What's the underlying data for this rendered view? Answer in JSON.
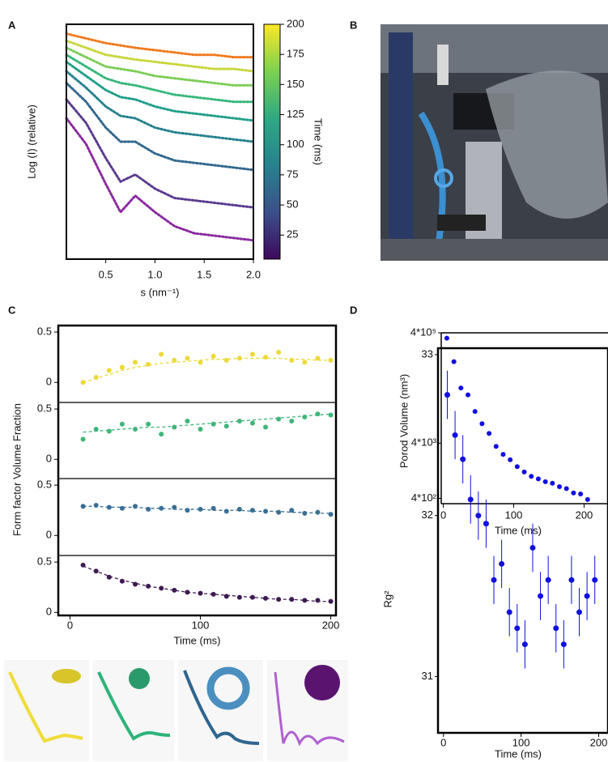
{
  "chart_data": [
    {
      "type": "line",
      "panel": "A",
      "xlabel": "s (nm⁻¹)",
      "ylabel": "Log (I) (relative)",
      "x": [
        0.1,
        0.3,
        0.5,
        0.65,
        0.8,
        1.0,
        1.2,
        1.4,
        1.6,
        1.8,
        2.0
      ],
      "xlim": [
        0.1,
        2.0
      ],
      "xticks": [
        0.5,
        {
          "value": 1.0,
          "label": "1.0"
        },
        1.5,
        {
          "value": 2.0,
          "label": "2.0"
        }
      ],
      "ylim": [
        0,
        100
      ],
      "series": [
        {
          "color": "#f07a1e",
          "values": [
            96,
            94,
            92,
            91,
            90,
            89,
            88,
            87,
            87,
            86,
            86
          ]
        },
        {
          "color": "#c8d63a",
          "values": [
            93,
            90,
            87,
            86,
            85,
            84,
            83,
            82,
            81,
            81,
            80
          ]
        },
        {
          "color": "#7ccd55",
          "values": [
            90,
            86,
            82,
            81,
            80,
            78,
            77,
            76,
            75,
            74,
            74
          ]
        },
        {
          "color": "#35b779",
          "values": [
            87,
            82,
            77,
            75,
            74,
            72,
            70,
            69,
            68,
            67,
            67
          ]
        },
        {
          "color": "#1f9e89",
          "values": [
            84,
            78,
            72,
            69,
            68,
            65,
            63,
            62,
            61,
            60,
            59
          ]
        },
        {
          "color": "#26828e",
          "values": [
            80,
            73,
            65,
            61,
            60,
            56,
            54,
            53,
            52,
            51,
            50
          ]
        },
        {
          "color": "#31688e",
          "values": [
            75,
            67,
            56,
            50,
            50,
            45,
            42,
            41,
            40,
            39,
            38
          ]
        },
        {
          "color": "#5a3a8e",
          "values": [
            68,
            58,
            43,
            33,
            36,
            30,
            26,
            25,
            24,
            23,
            22
          ]
        },
        {
          "color": "#8a2aa0",
          "values": [
            60,
            49,
            32,
            20,
            27,
            20,
            14,
            11,
            10,
            9,
            8
          ]
        }
      ],
      "colorbar": {
        "label": "Time (ms)",
        "lim": [
          5,
          200
        ],
        "ticks": [
          25,
          50,
          75,
          100,
          125,
          150,
          175,
          200
        ],
        "colors": [
          "#3d0a5c",
          "#3b4f8a",
          "#26828e",
          "#2fa983",
          "#7cd250",
          "#fde725"
        ]
      }
    },
    {
      "type": "image",
      "panel": "B"
    },
    {
      "type": "scatter",
      "panel": "C",
      "xlabel": "Time (ms)",
      "ylabel": "Form factor Volume Fraction",
      "x": [
        10,
        20,
        30,
        40,
        50,
        60,
        70,
        80,
        90,
        100,
        110,
        120,
        130,
        140,
        150,
        160,
        170,
        180,
        190,
        200
      ],
      "xlim": [
        -9,
        204
      ],
      "xticks": [
        0,
        100,
        200
      ],
      "ylim": [
        -0.03,
        0.565
      ],
      "yticks": [
        0,
        0.5
      ],
      "subplots": [
        {
          "color": "#ecd93a",
          "values": [
            0.0,
            0.05,
            0.12,
            0.15,
            0.2,
            0.18,
            0.28,
            0.22,
            0.24,
            0.2,
            0.26,
            0.22,
            0.24,
            0.28,
            0.25,
            0.3,
            0.22,
            0.2,
            0.24,
            0.22
          ],
          "fit": [
            0.0,
            0.04,
            0.08,
            0.12,
            0.15,
            0.17,
            0.19,
            0.2,
            0.21,
            0.22,
            0.23,
            0.23,
            0.24,
            0.24,
            0.24,
            0.24,
            0.23,
            0.23,
            0.22,
            0.22
          ]
        },
        {
          "color": "#3fb67a",
          "values": [
            0.2,
            0.3,
            0.28,
            0.35,
            0.3,
            0.35,
            0.25,
            0.32,
            0.38,
            0.3,
            0.35,
            0.33,
            0.38,
            0.36,
            0.32,
            0.4,
            0.38,
            0.42,
            0.45,
            0.44
          ],
          "fit": [
            0.27,
            0.28,
            0.29,
            0.3,
            0.31,
            0.32,
            0.32,
            0.33,
            0.34,
            0.35,
            0.36,
            0.37,
            0.38,
            0.39,
            0.4,
            0.41,
            0.42,
            0.43,
            0.44,
            0.45
          ]
        },
        {
          "color": "#3a6f94",
          "values": [
            0.29,
            0.3,
            0.28,
            0.27,
            0.29,
            0.26,
            0.27,
            0.28,
            0.25,
            0.26,
            0.27,
            0.24,
            0.26,
            0.25,
            0.24,
            0.23,
            0.25,
            0.22,
            0.23,
            0.21
          ],
          "fit": [
            0.29,
            0.29,
            0.28,
            0.28,
            0.28,
            0.27,
            0.27,
            0.26,
            0.26,
            0.26,
            0.25,
            0.25,
            0.25,
            0.24,
            0.24,
            0.24,
            0.23,
            0.23,
            0.22,
            0.22
          ]
        },
        {
          "color": "#3f1a52",
          "values": [
            0.47,
            0.41,
            0.35,
            0.31,
            0.28,
            0.26,
            0.24,
            0.22,
            0.2,
            0.19,
            0.18,
            0.16,
            0.15,
            0.15,
            0.14,
            0.13,
            0.13,
            0.12,
            0.12,
            0.11
          ],
          "fit": [
            0.46,
            0.41,
            0.36,
            0.32,
            0.29,
            0.26,
            0.24,
            0.22,
            0.2,
            0.19,
            0.18,
            0.17,
            0.16,
            0.15,
            0.14,
            0.13,
            0.13,
            0.12,
            0.11,
            0.11
          ]
        }
      ]
    },
    {
      "type": "scatter",
      "panel": "D",
      "xlabel": "Time (ms)",
      "ylabel": "Porod Volume (nm³)",
      "color": "#1010e0",
      "log_scale": true,
      "x": [
        5,
        15,
        25,
        35,
        45,
        55,
        65,
        75,
        85,
        95,
        105,
        115,
        125,
        135,
        145,
        155,
        165,
        175,
        185,
        195,
        205
      ],
      "values": [
        320000,
        120000,
        40000,
        30000,
        15000,
        9000,
        6000,
        3500,
        2500,
        2000,
        1500,
        1200,
        1000,
        900,
        800,
        750,
        650,
        600,
        500,
        480,
        380
      ],
      "xlim": [
        -3,
        234
      ],
      "xticks": [
        0,
        100,
        200
      ],
      "ylim": [
        320,
        400000
      ],
      "yticks": [
        {
          "value": 400000,
          "label": "4*10⁵"
        },
        {
          "value": 4000,
          "label": "4*10³"
        },
        {
          "value": 400,
          "label": "4*10²"
        }
      ]
    },
    {
      "type": "errorbar",
      "xlabel": "Time (ms)",
      "ylabel": "Rg²",
      "color": "#1010e0",
      "x": [
        5,
        15,
        25,
        35,
        45,
        55,
        65,
        75,
        85,
        95,
        105,
        115,
        125,
        135,
        145,
        155,
        165,
        175,
        185,
        195
      ],
      "values": [
        32.75,
        32.5,
        32.35,
        32.1,
        32.0,
        31.95,
        31.6,
        31.7,
        31.4,
        31.3,
        31.2,
        31.8,
        31.5,
        31.6,
        31.3,
        31.2,
        31.6,
        31.4,
        31.5,
        31.6
      ],
      "errors": [
        0.15,
        0.15,
        0.15,
        0.15,
        0.15,
        0.15,
        0.15,
        0.15,
        0.15,
        0.15,
        0.15,
        0.15,
        0.15,
        0.15,
        0.15,
        0.15,
        0.15,
        0.15,
        0.15,
        0.15
      ],
      "xlim": [
        -7,
        212
      ],
      "xticks": [
        0,
        100,
        200
      ],
      "ylim": [
        30.65,
        33.04
      ],
      "yticks": [
        31,
        32,
        33
      ]
    }
  ]
}
